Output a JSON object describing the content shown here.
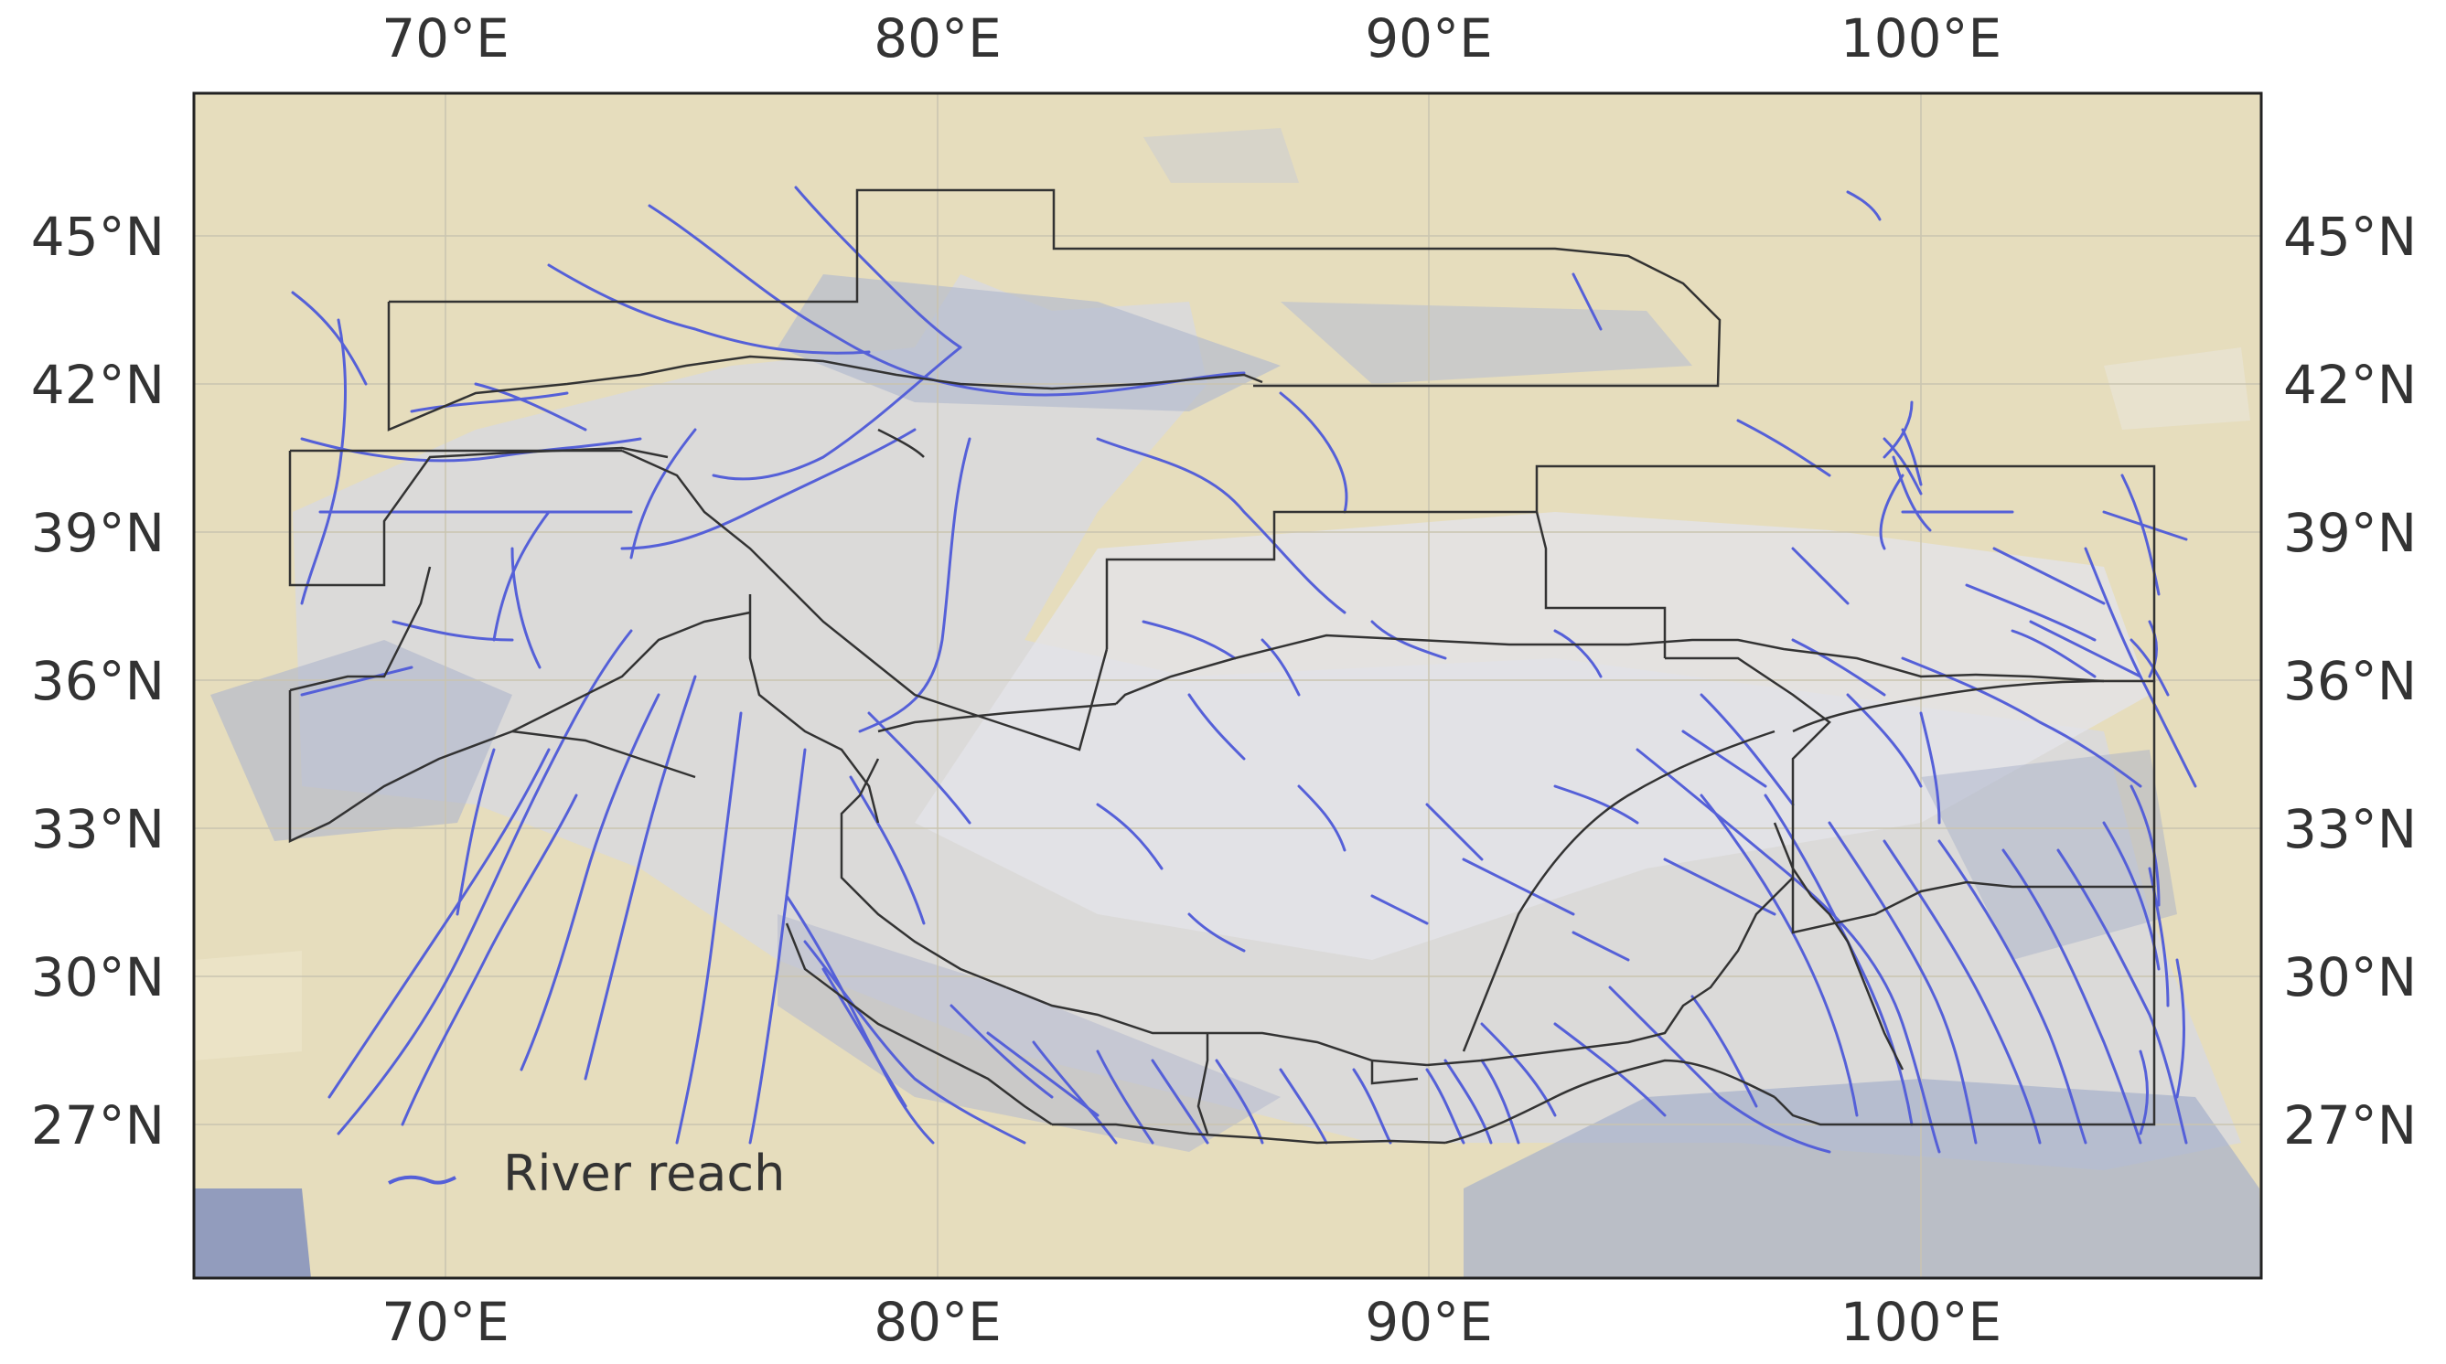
{
  "map": {
    "lon_ticks": [
      "70°E",
      "80°E",
      "90°E",
      "100°E"
    ],
    "lat_ticks": [
      "45°N",
      "42°N",
      "39°N",
      "36°N",
      "33°N",
      "30°N",
      "27°N"
    ],
    "legend": {
      "label": "River reach"
    },
    "colors": {
      "river": "#5560d8",
      "basin_boundary": "#333333",
      "graticule": "#bdbdbd",
      "frame": "#222222",
      "background_light": "#e8dfc0",
      "background_snow": "#d6d8df",
      "background_blue": "#9aa5c6"
    }
  }
}
